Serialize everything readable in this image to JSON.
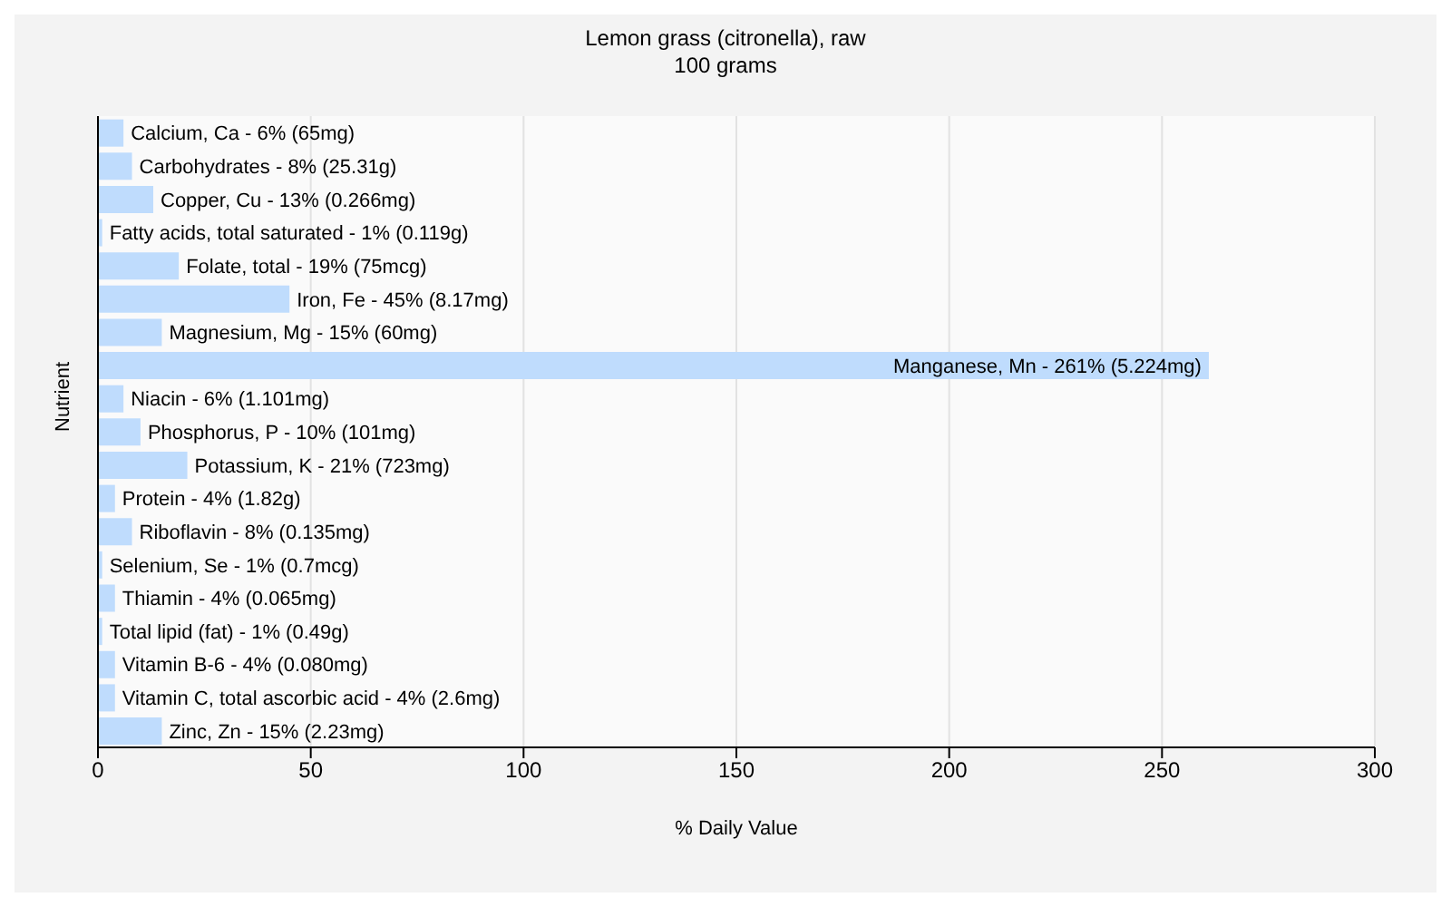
{
  "chart_data": {
    "type": "bar",
    "orientation": "horizontal",
    "title": "Lemon grass (citronella), raw",
    "subtitle": "100 grams",
    "xlabel": "% Daily Value",
    "ylabel": "Nutrient",
    "categories": [
      "Calcium, Ca -",
      "Carbohydrates -",
      "Copper, Cu -",
      "Fatty acids, total saturated -",
      "Folate, total -",
      "Iron, Fe -",
      "Magnesium, Mg -",
      "Manganese, Mn -",
      "Niacin -",
      "Phosphorus, P -",
      "Potassium, K -",
      "Protein -",
      "Riboflavin -",
      "Selenium, Se -",
      "Thiamin -",
      "Total lipid (fat) -",
      "Vitamin B-6 -",
      "Vitamin C, total ascorbic acid -",
      "Zinc, Zn -"
    ],
    "values": [
      6,
      8,
      13,
      1,
      19,
      45,
      15,
      261,
      6,
      10,
      21,
      4,
      8,
      1,
      4,
      1,
      4,
      4,
      15
    ],
    "value_labels": [
      "6% (65mg)",
      "8% (25.31g)",
      "13% (0.266mg)",
      "1% (0.119g)",
      "19% (75mcg)",
      "45% (8.17mg)",
      "15% (60mg)",
      "261% (5.224mg)",
      "6% (1.101mg)",
      "10% (101mg)",
      "21% (723mg)",
      "4% (1.82g)",
      "8% (0.135mg)",
      "1% (0.7mcg)",
      "4% (0.065mg)",
      "1% (0.49g)",
      "4% (0.080mg)",
      "4% (2.6mg)",
      "15% (2.23mg)"
    ],
    "color": "#bfdcfd",
    "xlim": [
      0,
      300
    ],
    "xticks": [
      0,
      50,
      100,
      150,
      200,
      250,
      300
    ],
    "grid": "x",
    "tick_labels": "x",
    "legend": false
  }
}
